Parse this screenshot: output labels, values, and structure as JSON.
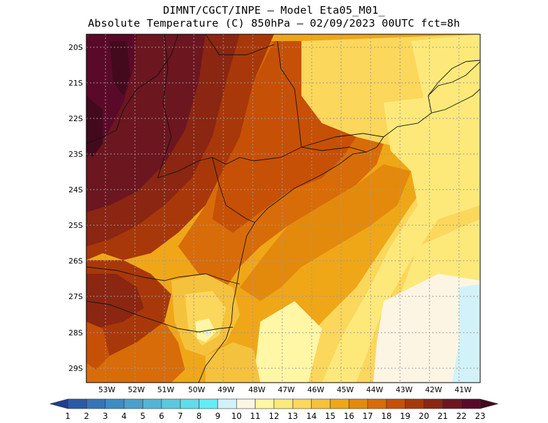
{
  "title": {
    "line1": "DIMNT/CGCT/INPE –  Model Eta05_M01_",
    "line2": "Absolute Temperature (C) 850hPa –  02/09/2023 00UTC fct=8h"
  },
  "map": {
    "lat_labels": [
      "20S",
      "21S",
      "22S",
      "23S",
      "24S",
      "25S",
      "26S",
      "27S",
      "28S",
      "29S"
    ],
    "lon_labels": [
      "53W",
      "52W",
      "51W",
      "50W",
      "49W",
      "48W",
      "47W",
      "46W",
      "45W",
      "44W",
      "43W",
      "42W",
      "41W"
    ]
  },
  "colorbar": {
    "labels": [
      "1",
      "2",
      "3",
      "4",
      "5",
      "6",
      "7",
      "8",
      "9",
      "10",
      "11",
      "12",
      "13",
      "14",
      "15",
      "16",
      "17",
      "18",
      "19",
      "20",
      "21",
      "22",
      "23"
    ],
    "colors": [
      "#1f3f8f",
      "#2a5aa8",
      "#3674b8",
      "#3d8cc4",
      "#4aa0cc",
      "#55b4d6",
      "#5cc8e0",
      "#60dcea",
      "#64ecf4",
      "#d2f2fa",
      "#fdf5e4",
      "#fff6a6",
      "#fde97a",
      "#fbd75c",
      "#f5c23d",
      "#efa718",
      "#e38a0c",
      "#d86c08",
      "#c65006",
      "#a8380a",
      "#8a2612",
      "#6c1620",
      "#5a0a28",
      "#430a1d"
    ]
  }
}
